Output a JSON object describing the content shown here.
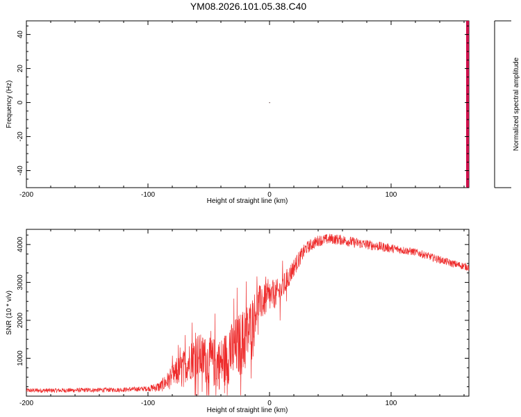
{
  "title": "YM08.2026.101.05.38.C40",
  "colors": {
    "series": "#ee2b2b",
    "colorbar_edge": "#d0104c",
    "axis": "#000000"
  },
  "chart_data": [
    {
      "type": "heatmap",
      "xlabel": "Height of straight line (km)",
      "ylabel": "Frequency (Hz)",
      "colorbar_label": "Normalized spectral amplitude",
      "xlim": [
        -200,
        164
      ],
      "ylim": [
        -50,
        48
      ],
      "x_ticks": [
        -200,
        -100,
        0,
        100
      ],
      "y_ticks": [
        -40,
        -20,
        0,
        20,
        40
      ],
      "x_tick_labels": [
        "-200",
        "-100",
        "0",
        "100"
      ],
      "y_tick_labels": [
        "-40",
        "-20",
        "0",
        "20",
        "40"
      ],
      "points": [
        {
          "x": 0,
          "y": 0
        }
      ],
      "grid": false
    },
    {
      "type": "line",
      "xlabel": "Height of straight line (km)",
      "ylabel": "SNR (10 * v/v)",
      "xlim": [
        -200,
        164
      ],
      "ylim": [
        0,
        4400
      ],
      "x_ticks": [
        -200,
        -100,
        0,
        100
      ],
      "y_ticks": [
        1000,
        2000,
        3000,
        4000
      ],
      "x_tick_labels": [
        "-200",
        "-100",
        "0",
        "100"
      ],
      "y_tick_labels": [
        "1000",
        "2000",
        "3000",
        "4000"
      ],
      "grid": false,
      "envelope": {
        "x": [
          -200,
          -180,
          -150,
          -120,
          -100,
          -90,
          -80,
          -70,
          -60,
          -50,
          -40,
          -30,
          -20,
          -15,
          -10,
          0,
          10,
          20,
          30,
          40,
          50,
          60,
          70,
          80,
          90,
          100,
          110,
          120,
          130,
          140,
          150,
          164
        ],
        "y": [
          150,
          150,
          160,
          170,
          200,
          250,
          500,
          800,
          1100,
          900,
          850,
          1200,
          1500,
          1900,
          2400,
          2600,
          2800,
          3400,
          3900,
          4100,
          4150,
          4120,
          4050,
          4000,
          3950,
          3900,
          3850,
          3800,
          3700,
          3600,
          3500,
          3400
        ],
        "noise": [
          60,
          60,
          60,
          60,
          70,
          150,
          300,
          450,
          600,
          650,
          700,
          800,
          900,
          700,
          500,
          400,
          350,
          250,
          170,
          150,
          140,
          140,
          140,
          130,
          130,
          120,
          110,
          100,
          100,
          100,
          100,
          100
        ]
      }
    }
  ]
}
